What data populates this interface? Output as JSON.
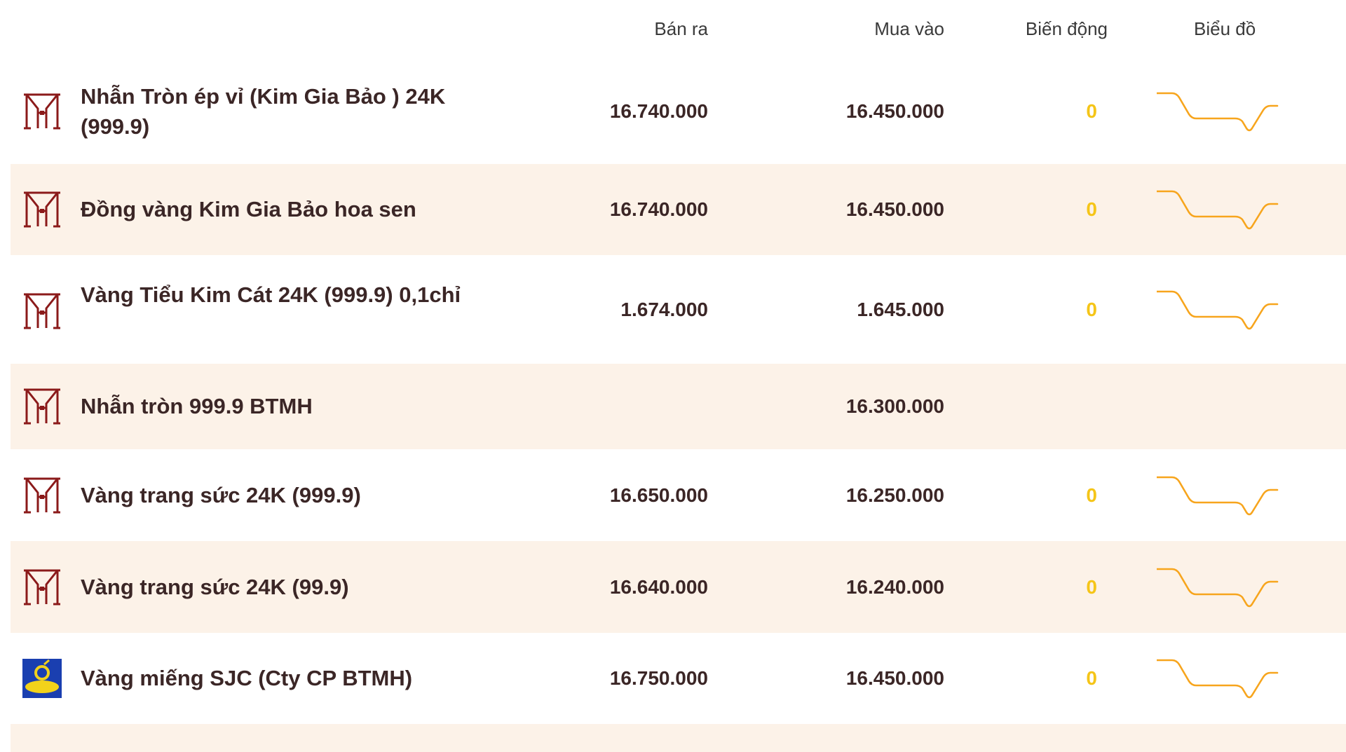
{
  "header": {
    "ban_ra": "Bán ra",
    "mua_vao": "Mua vào",
    "bien_dong": "Biến động",
    "bieu_do": "Biểu đồ"
  },
  "colors": {
    "row_alt_bg": "#fcf2e8",
    "change_color": "#f5c518",
    "sparkline_color": "#f7a51d",
    "btmh_logo": "#8b1a1a",
    "sjc_logo_bg": "#1a3fb0",
    "sjc_logo_fg": "#f2d21b"
  },
  "rows": [
    {
      "name": "Nhẫn Tròn ép vỉ (Kim Gia Bảo ) 24K (999.9)",
      "sell": "16.740.000",
      "buy": "16.450.000",
      "change": "0",
      "logo": "btmh-logo-icon"
    },
    {
      "name": "Đồng vàng Kim Gia Bảo hoa sen",
      "sell": "16.740.000",
      "buy": "16.450.000",
      "change": "0",
      "logo": "btmh-logo-icon"
    },
    {
      "name": "Vàng Tiểu Kim Cát 24K (999.9) 0,1chỉ",
      "sell": "1.674.000",
      "buy": "1.645.000",
      "change": "0",
      "logo": "btmh-logo-icon"
    },
    {
      "name": "Nhẫn tròn 999.9 BTMH",
      "sell": "",
      "buy": "16.300.000",
      "change": "",
      "logo": "btmh-logo-icon"
    },
    {
      "name": "Vàng trang sức 24K (999.9)",
      "sell": "16.650.000",
      "buy": "16.250.000",
      "change": "0",
      "logo": "btmh-logo-icon"
    },
    {
      "name": "Vàng trang sức 24K (99.9)",
      "sell": "16.640.000",
      "buy": "16.240.000",
      "change": "0",
      "logo": "btmh-logo-icon"
    },
    {
      "name": "Vàng miếng SJC (Cty CP BTMH)",
      "sell": "16.750.000",
      "buy": "16.450.000",
      "change": "0",
      "logo": "sjc-logo-icon"
    }
  ]
}
